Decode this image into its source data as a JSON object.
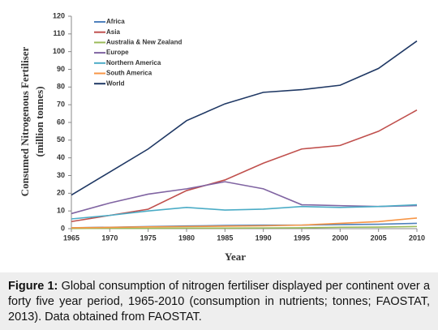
{
  "chart_data": {
    "type": "line",
    "xlabel": "Year",
    "ylabel": [
      "Consumed Nitrogenous Fertiliser",
      "(million tonnes)"
    ],
    "x": [
      1965,
      1970,
      1975,
      1980,
      1985,
      1990,
      1995,
      2000,
      2005,
      2010
    ],
    "series": [
      {
        "name": "Africa",
        "color": "#4f81bd",
        "values": [
          0.5,
          0.8,
          1.2,
          1.5,
          1.8,
          2,
          2,
          2.3,
          2.5,
          3
        ]
      },
      {
        "name": "Asia",
        "color": "#c0504d",
        "values": [
          4,
          7.5,
          11,
          21.5,
          27.5,
          37,
          45,
          47,
          55,
          67
        ]
      },
      {
        "name": "Australia & New Zealand",
        "color": "#9bbb59",
        "values": [
          0.1,
          0.2,
          0.2,
          0.3,
          0.3,
          0.4,
          0.5,
          0.8,
          0.9,
          1.2
        ]
      },
      {
        "name": "Europe",
        "color": "#8064a2",
        "values": [
          8.5,
          14.5,
          19.5,
          22.5,
          26.5,
          22.5,
          13.5,
          13,
          12.5,
          13
        ]
      },
      {
        "name": "Northern America",
        "color": "#4bacc6",
        "values": [
          5.5,
          7.5,
          10,
          12,
          10.5,
          11,
          12.5,
          12,
          12.5,
          13.5
        ]
      },
      {
        "name": "South America",
        "color": "#f79646",
        "values": [
          0.5,
          0.7,
          1,
          1.2,
          1.4,
          1.6,
          2,
          3,
          4,
          6
        ]
      },
      {
        "name": "World",
        "color": "#1f3864",
        "values": [
          19,
          32,
          45,
          61,
          70.5,
          77,
          78.5,
          81,
          90.5,
          106
        ]
      }
    ],
    "xlim": [
      1965,
      2010
    ],
    "xticks": [
      1965,
      1970,
      1975,
      1980,
      1985,
      1990,
      1995,
      2000,
      2005,
      2010
    ],
    "ylim": [
      0,
      120
    ],
    "yticks": [
      0,
      10,
      20,
      30,
      40,
      50,
      60,
      70,
      80,
      90,
      100,
      110,
      120
    ],
    "legend": "upper left"
  },
  "caption": {
    "label": "Figure 1:",
    "text": "Global consumption of nitrogen fertiliser displayed per continent over a forty five year period, 1965-2010 (consumption in nutrients; tonnes; FAOSTAT, 2013). Data obtained from FAOSTAT."
  }
}
